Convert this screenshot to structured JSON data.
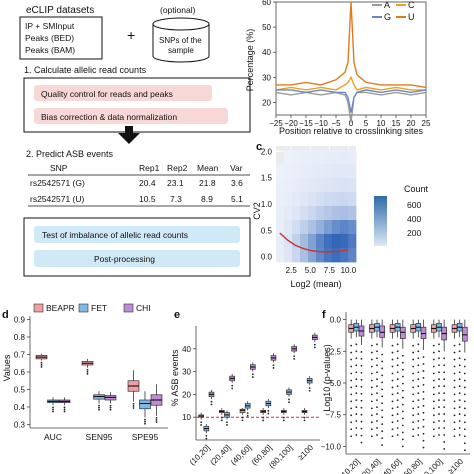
{
  "panel_a": {
    "eclip_title": "eCLIP datasets",
    "input_lines": [
      "IP + SMInput",
      "Peaks (BED)",
      "Peaks (BAM)"
    ],
    "optional_label": "(optional)",
    "snp_lines": [
      "SNPs of the",
      "sample"
    ],
    "step1": "1. Calculate allelic read counts",
    "qc_box": "Quality control for reads and peaks",
    "bias_box": "Bias correction & data normalization",
    "step2": "2. Predict ASB events",
    "table_headers": [
      "SNP",
      "Rep1",
      "Rep2",
      "Mean",
      "Var"
    ],
    "table_rows": [
      [
        "rs2542571 (G)",
        "20.4",
        "23.1",
        "21.8",
        "3.6"
      ],
      [
        "rs2542571 (U)",
        "10.5",
        "7.3",
        "8.9",
        "5.1"
      ]
    ],
    "test_box": "Test of imbalance of allelic read counts",
    "post_box": "Post-processing"
  },
  "panel_b": {
    "chart_data": {
      "type": "line",
      "ylabel": "Percentage (%)",
      "xlabel": "Position relative to crosslinking sites",
      "x_ticks": [
        "−25",
        "−20",
        "−15",
        "−10",
        "−5",
        "0",
        "5",
        "10",
        "15",
        "20",
        "25"
      ],
      "y_ticks": [
        "20",
        "30",
        "40",
        "50",
        "60"
      ],
      "xlim": [
        -25,
        25
      ],
      "ylim": [
        15,
        60
      ],
      "legend": [
        {
          "name": "A",
          "color": "#9a9a9a"
        },
        {
          "name": "C",
          "color": "#e8a21e"
        },
        {
          "name": "G",
          "color": "#6b86c8"
        },
        {
          "name": "U",
          "color": "#e07a1f"
        }
      ],
      "series": [
        {
          "name": "A",
          "color": "#9a9a9a",
          "x": [
            -25,
            -20,
            -15,
            -10,
            -5,
            -2,
            -1,
            0,
            1,
            2,
            5,
            10,
            15,
            20,
            25
          ],
          "y": [
            24,
            23,
            24,
            23,
            24,
            23,
            20,
            12,
            22,
            24,
            24,
            23,
            24,
            23,
            24
          ]
        },
        {
          "name": "C",
          "color": "#e8a21e",
          "x": [
            -25,
            -20,
            -15,
            -10,
            -5,
            -2,
            -1,
            0,
            1,
            2,
            5,
            10,
            15,
            20,
            25
          ],
          "y": [
            25,
            26,
            25,
            26,
            25,
            27,
            28,
            30,
            27,
            25,
            26,
            25,
            26,
            25,
            25
          ]
        },
        {
          "name": "G",
          "color": "#6b86c8",
          "x": [
            -25,
            -20,
            -15,
            -10,
            -5,
            -2,
            -1,
            0,
            1,
            2,
            5,
            10,
            15,
            20,
            25
          ],
          "y": [
            25,
            25,
            24,
            25,
            24,
            24,
            22,
            16,
            22,
            24,
            25,
            24,
            25,
            24,
            25
          ]
        },
        {
          "name": "U",
          "color": "#e07a1f",
          "x": [
            -25,
            -20,
            -15,
            -10,
            -5,
            -2,
            -1,
            0,
            1,
            2,
            5,
            10,
            15,
            20,
            25
          ],
          "y": [
            27,
            27,
            28,
            27,
            29,
            32,
            36,
            62,
            36,
            31,
            28,
            27,
            27,
            27,
            26
          ]
        }
      ]
    }
  },
  "panel_c": {
    "chart_data": {
      "type": "heatmap",
      "ylabel": "CV2",
      "xlabel": "Log2 (mean)",
      "x_ticks": [
        "2.5",
        "5.0",
        "7.5",
        "10.0"
      ],
      "y_ticks": [
        "0.0",
        "0.5",
        "1.0",
        "1.5",
        "2.0"
      ],
      "xlim": [
        0.5,
        11
      ],
      "ylim": [
        -0.1,
        2.1
      ],
      "legend_title": "Count",
      "legend_ticks": [
        "600",
        "400",
        "200"
      ],
      "trend_x": [
        1,
        2,
        3,
        4,
        5,
        6,
        7,
        8,
        9,
        10
      ],
      "trend_y": [
        0.45,
        0.32,
        0.22,
        0.16,
        0.12,
        0.1,
        0.09,
        0.1,
        0.11,
        0.13
      ],
      "density": [
        [
          0,
          1,
          3,
          6,
          9,
          12,
          14,
          16,
          17,
          15
        ],
        [
          1,
          4,
          8,
          14,
          20,
          26,
          30,
          34,
          36,
          33
        ],
        [
          2,
          8,
          16,
          26,
          36,
          46,
          55,
          62,
          66,
          60
        ],
        [
          4,
          14,
          30,
          48,
          66,
          86,
          104,
          118,
          124,
          112
        ],
        [
          6,
          24,
          52,
          88,
          124,
          166,
          206,
          236,
          250,
          228
        ],
        [
          10,
          40,
          96,
          166,
          240,
          330,
          420,
          500,
          540,
          500
        ],
        [
          14,
          60,
          150,
          270,
          400,
          540,
          650,
          700,
          680,
          600
        ],
        [
          10,
          50,
          130,
          250,
          380,
          520,
          620,
          660,
          620,
          540
        ]
      ]
    }
  },
  "panel_d": {
    "chart_data": {
      "type": "box",
      "ylabel": "Values",
      "categories": [
        "AUC",
        "SEN95",
        "SPE95"
      ],
      "y_ticks": [
        "0.3",
        "0.4",
        "0.5",
        "0.6",
        "0.7",
        "0.8",
        "0.9"
      ],
      "ylim": [
        0.28,
        0.92
      ],
      "series": [
        {
          "name": "BEAPR",
          "color": "#f0a0a0",
          "boxes": [
            [
              0.665,
              0.675,
              0.685,
              0.695,
              0.705
            ],
            [
              0.625,
              0.64,
              0.65,
              0.66,
              0.675
            ],
            [
              0.43,
              0.49,
              0.52,
              0.55,
              0.61
            ]
          ]
        },
        {
          "name": "FET",
          "color": "#80b8e8",
          "boxes": [
            [
              0.41,
              0.425,
              0.432,
              0.44,
              0.455
            ],
            [
              0.42,
              0.445,
              0.46,
              0.47,
              0.49
            ],
            [
              0.34,
              0.39,
              0.42,
              0.44,
              0.49
            ]
          ]
        },
        {
          "name": "CHI",
          "color": "#c08ad8",
          "boxes": [
            [
              0.41,
              0.425,
              0.432,
              0.44,
              0.455
            ],
            [
              0.42,
              0.44,
              0.455,
              0.465,
              0.485
            ],
            [
              0.35,
              0.41,
              0.44,
              0.47,
              0.53
            ]
          ]
        }
      ]
    }
  },
  "panel_e": {
    "chart_data": {
      "type": "box",
      "ylabel": "% ASB events",
      "categories": [
        "(10,20]",
        "(20,40]",
        "(40,60]",
        "(60,80]",
        "(80,100]",
        "≥100"
      ],
      "y_ticks": [
        "10",
        "20",
        "30",
        "40"
      ],
      "ylim": [
        0,
        50
      ],
      "reference_line": 10,
      "series": [
        {
          "name": "BEAPR",
          "color": "#f0a0a0",
          "boxes": [
            [
              9,
              10,
              10.5,
              11,
              12
            ],
            [
              11,
              12,
              12.5,
              13,
              14
            ],
            [
              11,
              12,
              13,
              13.5,
              14
            ],
            [
              11,
              12,
              12.5,
              13,
              14
            ],
            [
              11,
              12,
              12.5,
              13,
              14
            ],
            [
              11,
              12,
              12.5,
              13,
              14
            ]
          ]
        },
        {
          "name": "FET",
          "color": "#80b8e8",
          "boxes": [
            [
              3,
              4,
              5,
              6,
              7
            ],
            [
              9,
              10,
              11,
              12,
              13
            ],
            [
              13,
              14,
              15,
              16,
              17
            ],
            [
              14,
              15,
              16,
              17,
              18
            ],
            [
              19,
              20,
              21,
              22,
              23
            ],
            [
              24,
              25,
              26,
              27,
              28
            ]
          ]
        },
        {
          "name": "CHI",
          "color": "#c08ad8",
          "boxes": [
            [
              18,
              19,
              20,
              21,
              22
            ],
            [
              25,
              26,
              27,
              28,
              29
            ],
            [
              30,
              31,
              32,
              33,
              34
            ],
            [
              34,
              35,
              36,
              37,
              38
            ],
            [
              38,
              39,
              40,
              41,
              42
            ],
            [
              43,
              44,
              45,
              46,
              47
            ]
          ]
        }
      ]
    }
  },
  "panel_f": {
    "chart_data": {
      "type": "box",
      "ylabel": "Log10 (p-values)",
      "categories": [
        "(10,20]",
        "(20,40]",
        "(40,60]",
        "(60,80]",
        "(80,100]",
        "≥100"
      ],
      "y_ticks": [
        "0.0",
        "−2.5",
        "−5.0",
        "−7.5",
        "−10.0"
      ],
      "ylim": [
        -10.6,
        0.6
      ],
      "series": [
        {
          "name": "BEAPR",
          "color": "#f0a0a0",
          "boxes": [
            [
              -1.5,
              -1.0,
              -0.7,
              -0.4,
              0
            ],
            [
              -1.5,
              -1.0,
              -0.7,
              -0.4,
              0
            ],
            [
              -1.5,
              -1.0,
              -0.7,
              -0.4,
              0
            ],
            [
              -1.5,
              -1.0,
              -0.7,
              -0.4,
              0
            ],
            [
              -1.5,
              -1.0,
              -0.7,
              -0.4,
              0
            ],
            [
              -1.5,
              -1.0,
              -0.7,
              -0.4,
              0
            ]
          ]
        },
        {
          "name": "FET",
          "color": "#80b8e8",
          "boxes": [
            [
              -1.4,
              -0.9,
              -0.6,
              -0.3,
              0
            ],
            [
              -1.4,
              -0.9,
              -0.6,
              -0.3,
              0
            ],
            [
              -1.4,
              -0.9,
              -0.6,
              -0.3,
              0
            ],
            [
              -1.4,
              -0.9,
              -0.6,
              -0.3,
              0
            ],
            [
              -1.4,
              -0.9,
              -0.6,
              -0.3,
              0
            ],
            [
              -1.4,
              -0.9,
              -0.6,
              -0.3,
              0
            ]
          ]
        },
        {
          "name": "CHI",
          "color": "#c08ad8",
          "boxes": [
            [
              -2.0,
              -1.3,
              -0.9,
              -0.5,
              0
            ],
            [
              -2.2,
              -1.4,
              -1.0,
              -0.5,
              0
            ],
            [
              -2.3,
              -1.5,
              -1.0,
              -0.6,
              0
            ],
            [
              -2.4,
              -1.5,
              -1.1,
              -0.6,
              0
            ],
            [
              -2.5,
              -1.6,
              -1.1,
              -0.6,
              0
            ],
            [
              -2.6,
              -1.7,
              -1.2,
              -0.6,
              0
            ]
          ]
        }
      ]
    }
  },
  "panel_letters": {
    "c": "c",
    "d": "d",
    "e": "e",
    "f": "f"
  }
}
